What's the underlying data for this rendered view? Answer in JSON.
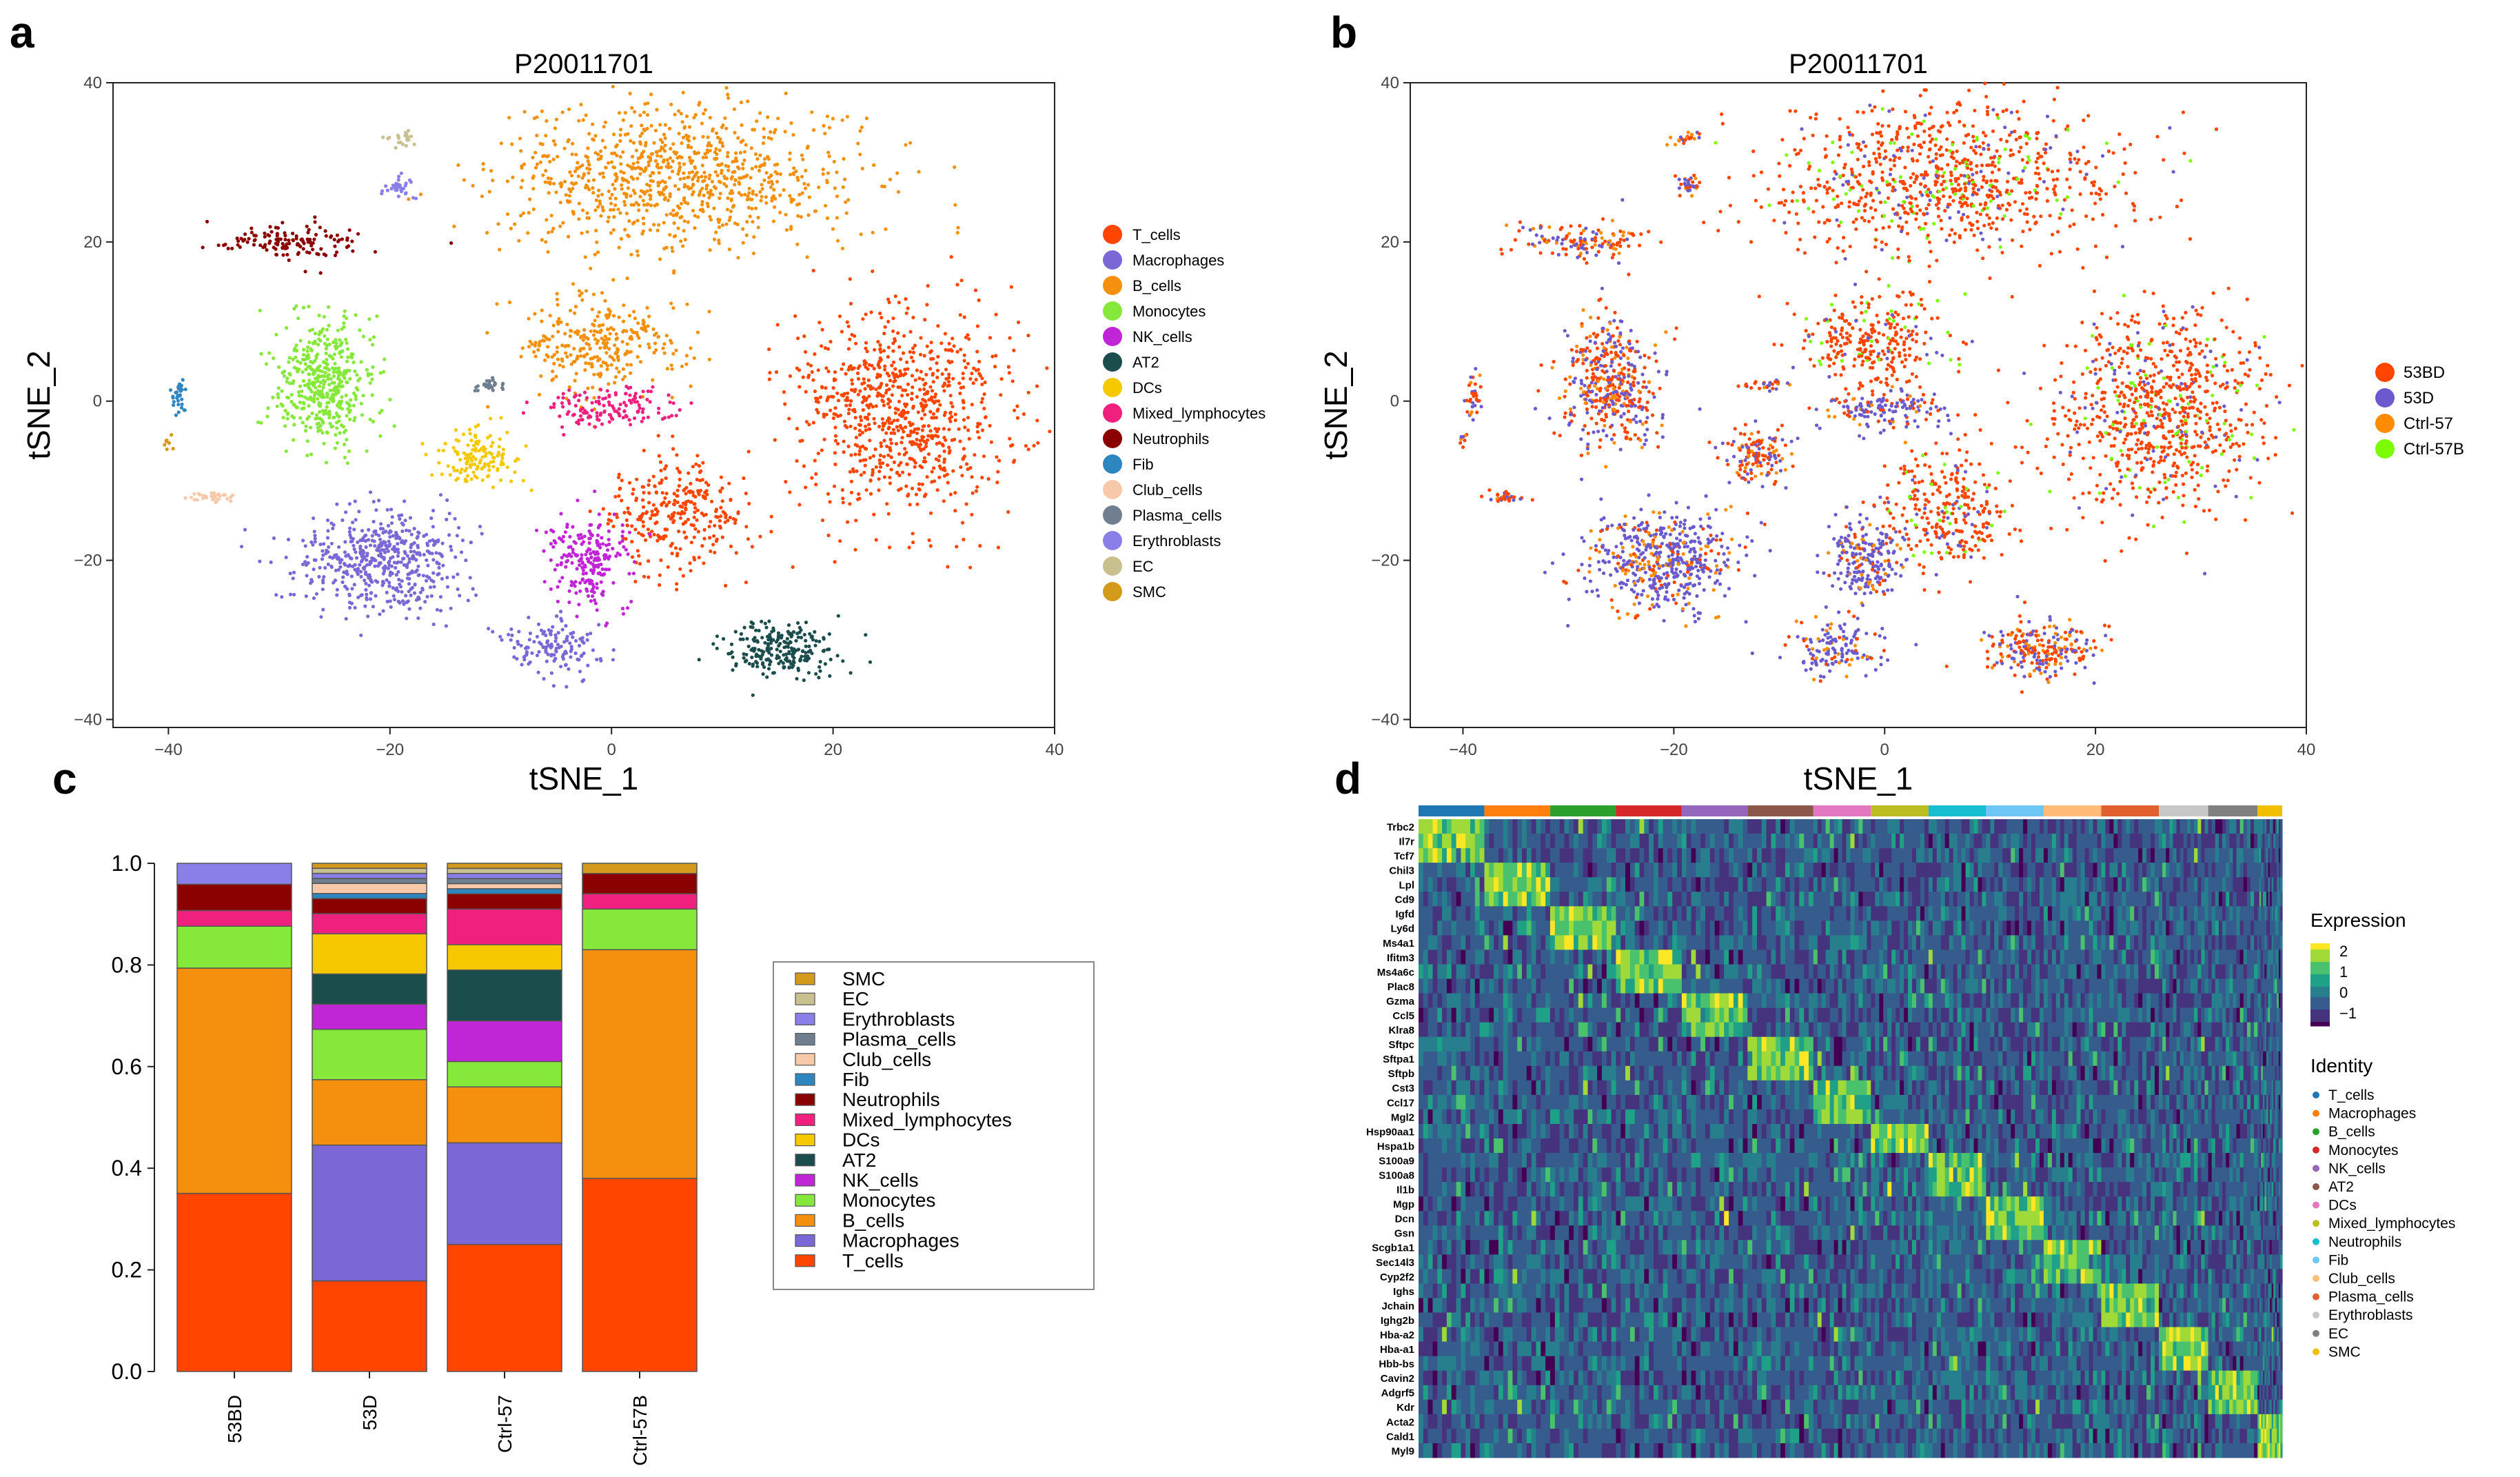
{
  "panels": {
    "a": {
      "letter": "a",
      "title": "P20011701",
      "xlabel": "tSNE_1",
      "ylabel": "tSNE_2",
      "xticks": [
        -40,
        -20,
        0,
        20,
        40
      ],
      "yticks": [
        -40,
        -20,
        0,
        20,
        40
      ],
      "legend": [
        "T_cells",
        "Macrophages",
        "B_cells",
        "Monocytes",
        "NK_cells",
        "AT2",
        "DCs",
        "Mixed_lymphocytes",
        "Neutrophils",
        "Fib",
        "Club_cells",
        "Plasma_cells",
        "Erythroblasts",
        "EC",
        "SMC"
      ]
    },
    "b": {
      "letter": "b",
      "title": "P20011701",
      "xlabel": "tSNE_1",
      "ylabel": "tSNE_2",
      "xticks": [
        -40,
        -20,
        0,
        20,
        40
      ],
      "yticks": [
        -40,
        -20,
        0,
        20,
        40
      ],
      "legend": [
        "53BD",
        "53D",
        "Ctrl-57",
        "Ctrl-57B"
      ]
    },
    "c": {
      "letter": "c",
      "yticks": [
        "0.0",
        "0.2",
        "0.4",
        "0.6",
        "0.8",
        "1.0"
      ],
      "categories": [
        "53BD",
        "53D",
        "Ctrl-57",
        "Ctrl-57B"
      ],
      "legend": [
        "SMC",
        "EC",
        "Erythroblasts",
        "Plasma_cells",
        "Club_cells",
        "Fib",
        "Neutrophils",
        "Mixed_lymphocytes",
        "DCs",
        "AT2",
        "NK_cells",
        "Monocytes",
        "B_cells",
        "Macrophages",
        "T_cells"
      ]
    },
    "d": {
      "letter": "d",
      "genes": [
        "Trbc2",
        "Il7r",
        "Tcf7",
        "Chil3",
        "Lpl",
        "Cd9",
        "Igfd",
        "Ly6d",
        "Ms4a1",
        "Ifitm3",
        "Ms4a6c",
        "Plac8",
        "Gzma",
        "Ccl5",
        "Klra8",
        "Sftpc",
        "Sftpa1",
        "Sftpb",
        "Cst3",
        "Ccl17",
        "Mgl2",
        "Hsp90aa1",
        "Hspa1b",
        "S100a9",
        "S100a8",
        "Il1b",
        "Mgp",
        "Dcn",
        "Gsn",
        "Scgb1a1",
        "Sec14l3",
        "Cyp2f2",
        "Ighs",
        "Jchain",
        "Ighg2b",
        "Hba-a2",
        "Hba-a1",
        "Hbb-bs",
        "Cavin2",
        "Adgrf5",
        "Kdr",
        "Acta2",
        "Cald1",
        "Myl9"
      ],
      "expression_title": "Expression",
      "expression_ticks": [
        "2",
        "1",
        "0",
        "−1"
      ],
      "identity_title": "Identity",
      "identity": [
        "T_cells",
        "Macrophages",
        "B_cells",
        "Monocytes",
        "NK_cells",
        "AT2",
        "DCs",
        "Mixed_lymphocytes",
        "Neutrophils",
        "Fib",
        "Club_cells",
        "Plasma_cells",
        "Erythroblasts",
        "EC",
        "SMC"
      ]
    }
  },
  "colors": {
    "celltypes": [
      "#ff4500",
      "#7b68d6",
      "#f5900f",
      "#85e83a",
      "#c025d6",
      "#1b4d4d",
      "#f5c800",
      "#f0207f",
      "#8b0000",
      "#2e86c1",
      "#f8c9a8",
      "#6f7f8f",
      "#8a7ee8",
      "#c9c090",
      "#d49a1c"
    ],
    "samples": [
      "#ff4500",
      "#6a5acd",
      "#ff8c00",
      "#7cfc00"
    ],
    "identity_bar": [
      "#1f77b4",
      "#ff7f0e",
      "#2ca02c",
      "#d62728",
      "#9467bd",
      "#8c564b",
      "#e377c2",
      "#bcbd22",
      "#17becf",
      "#6ec6f5",
      "#ffbb78",
      "#e0602f",
      "#c7c7c7",
      "#7f7f7f",
      "#f0c000"
    ]
  },
  "chart_data": [
    {
      "type": "scatter",
      "panel": "a",
      "title": "P20011701",
      "xlabel": "tSNE_1",
      "ylabel": "tSNE_2",
      "xlim": [
        -45,
        40
      ],
      "ylim": [
        -41,
        40
      ],
      "clusters": [
        {
          "name": "B_cells",
          "cx": 6,
          "cy": 28,
          "rx": 18,
          "ry": 10,
          "n": 1600
        },
        {
          "name": "B_cells",
          "cx": -1,
          "cy": 7,
          "rx": 8,
          "ry": 7,
          "n": 550
        },
        {
          "name": "T_cells",
          "cx": 26,
          "cy": -1,
          "rx": 11,
          "ry": 14,
          "n": 1500
        },
        {
          "name": "T_cells",
          "cx": 6,
          "cy": -14,
          "rx": 7,
          "ry": 8,
          "n": 550
        },
        {
          "name": "Monocytes",
          "cx": -26,
          "cy": 2,
          "rx": 5,
          "ry": 9,
          "n": 800
        },
        {
          "name": "Macrophages",
          "cx": -21,
          "cy": -20,
          "rx": 8,
          "ry": 7,
          "n": 950
        },
        {
          "name": "Macrophages",
          "cx": -5,
          "cy": -31,
          "rx": 5,
          "ry": 4,
          "n": 250
        },
        {
          "name": "NK_cells",
          "cx": -2,
          "cy": -20,
          "rx": 4,
          "ry": 6,
          "n": 400
        },
        {
          "name": "AT2",
          "cx": 15,
          "cy": -31,
          "rx": 6,
          "ry": 4,
          "n": 420
        },
        {
          "name": "DCs",
          "cx": -12,
          "cy": -7,
          "rx": 4,
          "ry": 4,
          "n": 250
        },
        {
          "name": "Mixed_lymphocytes",
          "cx": 0,
          "cy": -1,
          "rx": 7,
          "ry": 3,
          "n": 250
        },
        {
          "name": "Neutrophils",
          "cx": -29,
          "cy": 20,
          "rx": 7,
          "ry": 2.5,
          "n": 240
        },
        {
          "name": "Fib",
          "cx": -39,
          "cy": 1,
          "rx": 0.8,
          "ry": 3,
          "n": 60
        },
        {
          "name": "Club_cells",
          "cx": -36,
          "cy": -12,
          "rx": 2,
          "ry": 0.6,
          "n": 60
        },
        {
          "name": "Plasma_cells",
          "cx": -11,
          "cy": 2,
          "rx": 2,
          "ry": 0.7,
          "n": 50
        },
        {
          "name": "Erythroblasts",
          "cx": -19,
          "cy": 27,
          "rx": 1.5,
          "ry": 1.5,
          "n": 60
        },
        {
          "name": "EC",
          "cx": -19,
          "cy": 33,
          "rx": 2,
          "ry": 1,
          "n": 40
        },
        {
          "name": "SMC",
          "cx": -40,
          "cy": -5,
          "rx": 0.5,
          "ry": 1.2,
          "n": 15
        }
      ]
    },
    {
      "type": "scatter",
      "panel": "b",
      "title": "P20011701",
      "xlabel": "tSNE_1",
      "ylabel": "tSNE_2",
      "xlim": [
        -45,
        40
      ],
      "ylim": [
        -41,
        40
      ],
      "sample_fractions": {
        "53BD": 0.45,
        "53D": 0.35,
        "Ctrl-57": 0.1,
        "Ctrl-57B": 0.1
      }
    },
    {
      "type": "bar",
      "panel": "c",
      "stacked": true,
      "categories": [
        "53BD",
        "53D",
        "Ctrl-57",
        "Ctrl-57B"
      ],
      "ylim": [
        0,
        1
      ],
      "series": [
        {
          "name": "T_cells",
          "values": [
            0.34,
            0.18,
            0.25,
            0.38
          ]
        },
        {
          "name": "Macrophages",
          "values": [
            0.0,
            0.27,
            0.2,
            0.0
          ]
        },
        {
          "name": "B_cells",
          "values": [
            0.43,
            0.13,
            0.11,
            0.45
          ]
        },
        {
          "name": "Monocytes",
          "values": [
            0.08,
            0.1,
            0.05,
            0.08
          ]
        },
        {
          "name": "NK_cells",
          "values": [
            0.0,
            0.05,
            0.08,
            0.0
          ]
        },
        {
          "name": "AT2",
          "values": [
            0.0,
            0.06,
            0.1,
            0.0
          ]
        },
        {
          "name": "DCs",
          "values": [
            0.0,
            0.08,
            0.05,
            0.0
          ]
        },
        {
          "name": "Mixed_lymphocytes",
          "values": [
            0.03,
            0.04,
            0.07,
            0.03
          ]
        },
        {
          "name": "Neutrophils",
          "values": [
            0.05,
            0.03,
            0.03,
            0.04
          ]
        },
        {
          "name": "Fib",
          "values": [
            0.0,
            0.01,
            0.01,
            0.0
          ]
        },
        {
          "name": "Club_cells",
          "values": [
            0.0,
            0.02,
            0.01,
            0.0
          ]
        },
        {
          "name": "Plasma_cells",
          "values": [
            0.0,
            0.01,
            0.01,
            0.0
          ]
        },
        {
          "name": "Erythroblasts",
          "values": [
            0.04,
            0.01,
            0.01,
            0.0
          ]
        },
        {
          "name": "EC",
          "values": [
            0.0,
            0.01,
            0.01,
            0.0
          ]
        },
        {
          "name": "SMC",
          "values": [
            0.0,
            0.01,
            0.01,
            0.02
          ]
        }
      ]
    },
    {
      "type": "heatmap",
      "panel": "d",
      "expression_range": [
        -1.5,
        2.5
      ],
      "gene_groups": [
        [
          0,
          2
        ],
        [
          3,
          5
        ],
        [
          6,
          8
        ],
        [
          9,
          11
        ],
        [
          12,
          14
        ],
        [
          15,
          17
        ],
        [
          18,
          20
        ],
        [
          21,
          22
        ],
        [
          23,
          25
        ],
        [
          26,
          28
        ],
        [
          29,
          31
        ],
        [
          32,
          34
        ],
        [
          35,
          37
        ],
        [
          38,
          40
        ],
        [
          41,
          43
        ]
      ],
      "cluster_widths": [
        0.08,
        0.08,
        0.08,
        0.08,
        0.08,
        0.08,
        0.07,
        0.07,
        0.07,
        0.07,
        0.07,
        0.07,
        0.06,
        0.06,
        0.03
      ]
    }
  ]
}
